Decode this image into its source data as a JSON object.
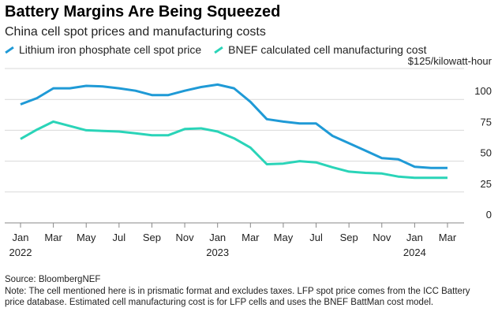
{
  "title": "Battery Margins Are Being Squeezed",
  "subtitle": "China cell spot prices and manufacturing costs",
  "source": "Source: BloombergNEF",
  "note": "Note: The cell mentioned here is in prismatic format and excludes taxes. LFP spot price comes from the ICC Battery price database. Estimated cell manufacturing cost is for LFP cells and uses the BNEF BattMan cost model.",
  "chart_data": {
    "type": "line",
    "title": "Battery Margins Are Being Squeezed",
    "subtitle": "China cell spot prices and manufacturing costs",
    "ylabel": "$125/kilowatt-hour",
    "ylim": [
      0,
      125
    ],
    "yticks": [
      0,
      25,
      50,
      75,
      100
    ],
    "xlim": [
      "2022-01",
      "2024-03"
    ],
    "x_tick_labels": [
      "Jan",
      "Mar",
      "May",
      "Jul",
      "Sep",
      "Nov",
      "Jan",
      "Mar",
      "May",
      "Jul",
      "Sep",
      "Nov",
      "Jan",
      "Mar"
    ],
    "x_year_labels": [
      {
        "label": "2022",
        "at": "2022-01"
      },
      {
        "label": "2023",
        "at": "2023-01"
      },
      {
        "label": "2024",
        "at": "2024-01"
      }
    ],
    "grid": true,
    "legend_position": "top-left",
    "series": [
      {
        "name": "Lithium iron phosphate cell spot price",
        "color": "#1f9ad6",
        "points": [
          [
            "2022-01",
            96
          ],
          [
            "2022-02",
            101
          ],
          [
            "2022-03",
            109
          ],
          [
            "2022-04",
            109
          ],
          [
            "2022-05",
            111
          ],
          [
            "2022-06",
            110.5
          ],
          [
            "2022-07",
            109
          ],
          [
            "2022-08",
            107
          ],
          [
            "2022-09",
            103.5
          ],
          [
            "2022-10",
            103.5
          ],
          [
            "2022-11",
            107
          ],
          [
            "2022-12",
            110
          ],
          [
            "2023-01",
            112
          ],
          [
            "2023-02",
            109
          ],
          [
            "2023-03",
            98
          ],
          [
            "2023-04",
            84
          ],
          [
            "2023-05",
            82
          ],
          [
            "2023-06",
            80.5
          ],
          [
            "2023-07",
            80.5
          ],
          [
            "2023-08",
            70.5
          ],
          [
            "2023-09",
            64.5
          ],
          [
            "2023-10",
            58.5
          ],
          [
            "2023-11",
            52.5
          ],
          [
            "2023-12",
            51.5
          ],
          [
            "2024-01",
            45.5
          ],
          [
            "2024-02",
            44.5
          ],
          [
            "2024-03",
            44.5
          ]
        ]
      },
      {
        "name": "BNEF calculated cell manufacturing cost",
        "color": "#2ad4b8",
        "points": [
          [
            "2022-01",
            68
          ],
          [
            "2022-02",
            75.5
          ],
          [
            "2022-03",
            82
          ],
          [
            "2022-04",
            78.5
          ],
          [
            "2022-05",
            75
          ],
          [
            "2022-06",
            74.5
          ],
          [
            "2022-07",
            74
          ],
          [
            "2022-08",
            72.5
          ],
          [
            "2022-09",
            71
          ],
          [
            "2022-10",
            71
          ],
          [
            "2022-11",
            76
          ],
          [
            "2022-12",
            76.5
          ],
          [
            "2023-01",
            74
          ],
          [
            "2023-02",
            68.5
          ],
          [
            "2023-03",
            61
          ],
          [
            "2023-04",
            47.5
          ],
          [
            "2023-05",
            48
          ],
          [
            "2023-06",
            50
          ],
          [
            "2023-07",
            49
          ],
          [
            "2023-08",
            45
          ],
          [
            "2023-09",
            41.5
          ],
          [
            "2023-10",
            40.5
          ],
          [
            "2023-11",
            40
          ],
          [
            "2023-12",
            37.5
          ],
          [
            "2024-01",
            36.5
          ],
          [
            "2024-02",
            36.5
          ],
          [
            "2024-03",
            36.5
          ]
        ]
      }
    ]
  }
}
